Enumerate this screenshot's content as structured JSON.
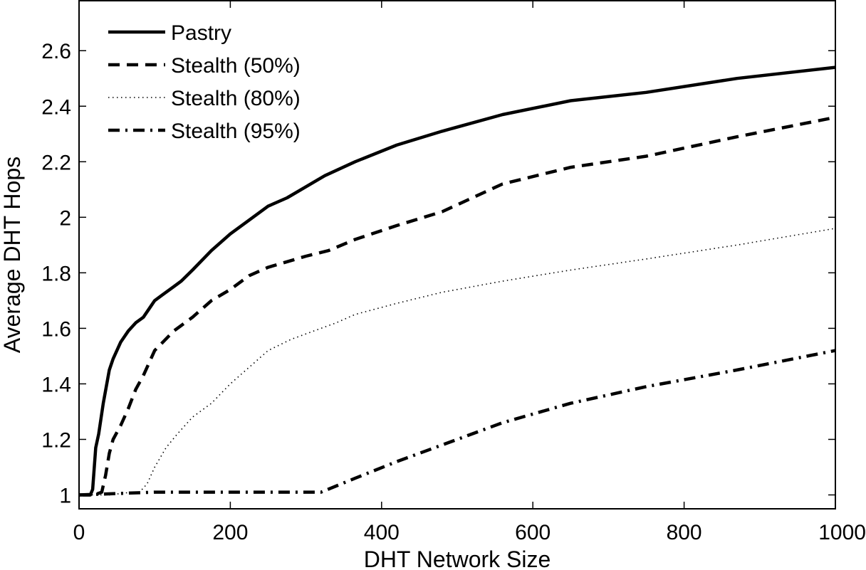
{
  "chart_data": {
    "type": "line",
    "title": "",
    "xlabel": "DHT Network Size",
    "ylabel": "Average DHT Hops",
    "xlim": [
      0,
      1000
    ],
    "ylim": [
      0.95,
      2.78
    ],
    "xticks": [
      0,
      200,
      400,
      600,
      800,
      1000
    ],
    "yticks": [
      1,
      1.2,
      1.4,
      1.6,
      1.8,
      2,
      2.2,
      2.4,
      2.6
    ],
    "xtick_labels": [
      "0",
      "200",
      "400",
      "600",
      "800",
      "1000"
    ],
    "ytick_labels": [
      "1",
      "1.2",
      "1.4",
      "1.6",
      "1.8",
      "2",
      "2.2",
      "2.4",
      "2.6"
    ],
    "grid": false,
    "legend_position": "top-left",
    "series": [
      {
        "name": "Pastry",
        "line_style": "solid",
        "color": "#000000",
        "x": [
          5,
          15,
          18,
          22,
          26,
          32,
          40,
          45,
          55,
          65,
          75,
          85,
          95,
          100,
          110,
          125,
          135,
          150,
          175,
          200,
          225,
          250,
          275,
          300,
          325,
          365,
          420,
          480,
          560,
          650,
          750,
          870,
          1000
        ],
        "y": [
          1.0,
          1.0,
          1.02,
          1.17,
          1.22,
          1.33,
          1.45,
          1.49,
          1.55,
          1.59,
          1.62,
          1.64,
          1.68,
          1.7,
          1.72,
          1.75,
          1.77,
          1.81,
          1.88,
          1.94,
          1.99,
          2.04,
          2.07,
          2.11,
          2.15,
          2.2,
          2.26,
          2.31,
          2.37,
          2.42,
          2.45,
          2.5,
          2.54
        ]
      },
      {
        "name": "Stealth (50%)",
        "line_style": "dashed",
        "color": "#000000",
        "x": [
          0,
          20,
          30,
          35,
          40,
          45,
          55,
          65,
          75,
          85,
          100,
          125,
          150,
          175,
          200,
          225,
          250,
          275,
          300,
          330,
          365,
          420,
          480,
          560,
          650,
          750,
          870,
          1000
        ],
        "y": [
          1.0,
          1.0,
          1.01,
          1.07,
          1.15,
          1.2,
          1.25,
          1.31,
          1.38,
          1.43,
          1.52,
          1.59,
          1.64,
          1.7,
          1.74,
          1.79,
          1.82,
          1.84,
          1.86,
          1.88,
          1.92,
          1.97,
          2.02,
          2.12,
          2.18,
          2.22,
          2.29,
          2.36
        ]
      },
      {
        "name": "Stealth (80%)",
        "line_style": "dotted",
        "color": "#000000",
        "x": [
          0,
          40,
          70,
          80,
          90,
          100,
          115,
          130,
          150,
          175,
          200,
          225,
          250,
          280,
          310,
          340,
          365,
          420,
          480,
          560,
          650,
          750,
          870,
          1000
        ],
        "y": [
          1.0,
          1.0,
          1.01,
          1.01,
          1.04,
          1.1,
          1.17,
          1.22,
          1.28,
          1.33,
          1.4,
          1.46,
          1.52,
          1.56,
          1.59,
          1.62,
          1.65,
          1.69,
          1.73,
          1.77,
          1.81,
          1.85,
          1.9,
          1.96
        ]
      },
      {
        "name": "Stealth (95%)",
        "line_style": "dashdot",
        "color": "#000000",
        "x": [
          0,
          100,
          200,
          300,
          320,
          365,
          420,
          480,
          560,
          650,
          750,
          870,
          1000
        ],
        "y": [
          1.0,
          1.01,
          1.01,
          1.01,
          1.01,
          1.06,
          1.12,
          1.18,
          1.26,
          1.33,
          1.39,
          1.45,
          1.52
        ]
      }
    ]
  }
}
